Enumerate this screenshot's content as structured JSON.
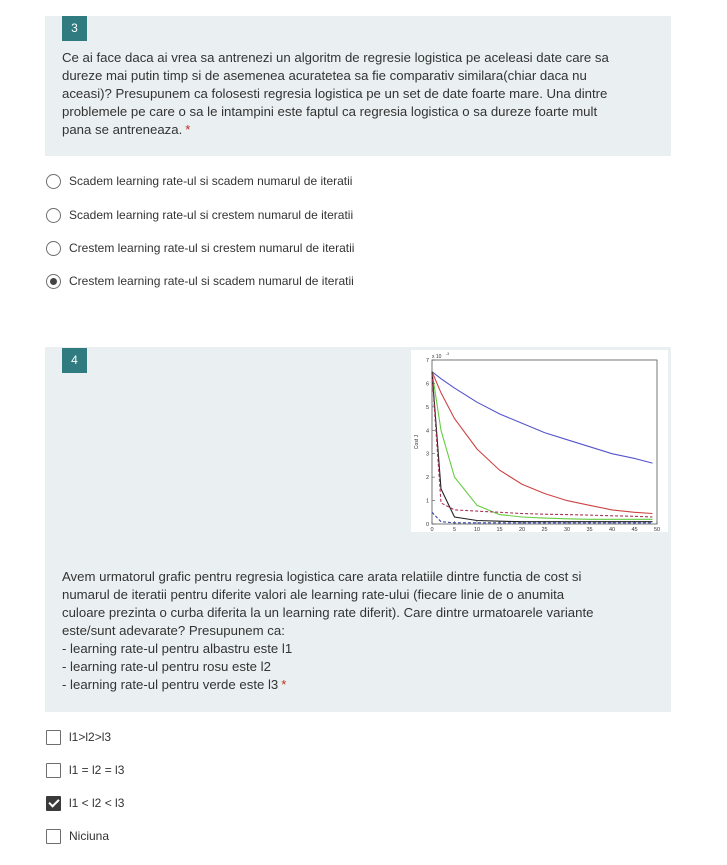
{
  "question3": {
    "number": "3",
    "text": "Ce ai face daca ai vrea sa antrenezi un algoritm de regresie logistica pe aceleasi date care sa\ndureze mai putin timp si de asemenea acuratetea sa fie comparativ similara(chiar daca nu\naceasi)? Presupunem ca folosesti regresia logistica pe un set de date foarte mare. Una dintre\nproblemele pe care o sa le intampini este faptul ca regresia logistica o sa dureze foarte mult\npana se antreneaza.",
    "required_mark": "*",
    "options": [
      {
        "label": "Scadem learning rate-ul si scadem numarul de iteratii",
        "selected": false
      },
      {
        "label": "Scadem learning rate-ul si crestem numarul de iteratii",
        "selected": false
      },
      {
        "label": "Crestem learning rate-ul si crestem numarul de iteratii",
        "selected": false
      },
      {
        "label": "Crestem learning rate-ul si scadem numarul de iteratii",
        "selected": true
      }
    ]
  },
  "question4": {
    "number": "4",
    "text": "Avem urmatorul grafic pentru regresia logistica care arata relatiile dintre functia de cost si\nnumarul de iteratii pentru diferite valori ale learning rate-ului (fiecare linie de o anumita\nculoare prezinta o curba diferita la un learning rate diferit). Care dintre urmatoarele variante\neste/sunt adevarate? Presupunem ca:\n- learning rate-ul pentru albastru este l1\n- learning rate-ul pentru rosu este l2\n- learning rate-ul pentru verde este l3",
    "required_mark": "*",
    "options": [
      {
        "label": "l1>l2>l3",
        "selected": false
      },
      {
        "label": "l1 = l2 = l3",
        "selected": false
      },
      {
        "label": "l1 < l2 < l3",
        "selected": true
      },
      {
        "label": "Niciuna",
        "selected": false
      }
    ]
  },
  "chart_data": {
    "type": "line",
    "title": "",
    "xlabel": "",
    "ylabel": "Cost J",
    "y_multiplier_label": "x 10",
    "y_multiplier_exp": "-3",
    "xlim": [
      0,
      50
    ],
    "ylim": [
      0,
      7
    ],
    "x_ticks": [
      "0",
      "5",
      "10",
      "15",
      "20",
      "25",
      "30",
      "35",
      "40",
      "45",
      "50"
    ],
    "y_ticks": [
      "0",
      "1",
      "2",
      "3",
      "4",
      "5",
      "6",
      "7"
    ],
    "x": [
      0,
      2,
      5,
      10,
      15,
      20,
      25,
      30,
      35,
      40,
      45,
      49
    ],
    "series": [
      {
        "color": "#5555cc",
        "dash": false,
        "values": [
          6.5,
          6.2,
          5.8,
          5.2,
          4.7,
          4.3,
          3.9,
          3.6,
          3.3,
          3.0,
          2.8,
          2.6
        ]
      },
      {
        "color": "#cc4444",
        "dash": false,
        "values": [
          6.5,
          5.6,
          4.5,
          3.2,
          2.3,
          1.7,
          1.3,
          1.0,
          0.8,
          0.6,
          0.5,
          0.45
        ]
      },
      {
        "color": "#66cc44",
        "dash": false,
        "values": [
          6.5,
          4.0,
          2.0,
          0.8,
          0.4,
          0.3,
          0.25,
          0.22,
          0.2,
          0.2,
          0.2,
          0.2
        ]
      },
      {
        "color": "#222222",
        "dash": false,
        "values": [
          6.5,
          1.5,
          0.3,
          0.15,
          0.12,
          0.1,
          0.1,
          0.1,
          0.1,
          0.1,
          0.1,
          0.1
        ]
      },
      {
        "color": "#aa3355",
        "dash": true,
        "values": [
          6.4,
          0.9,
          0.6,
          0.55,
          0.5,
          0.45,
          0.42,
          0.4,
          0.38,
          0.35,
          0.33,
          0.3
        ]
      },
      {
        "color": "#3344aa",
        "dash": true,
        "values": [
          0.5,
          0.1,
          0.05,
          0.05,
          0.05,
          0.05,
          0.05,
          0.05,
          0.05,
          0.05,
          0.05,
          0.05
        ]
      }
    ]
  }
}
